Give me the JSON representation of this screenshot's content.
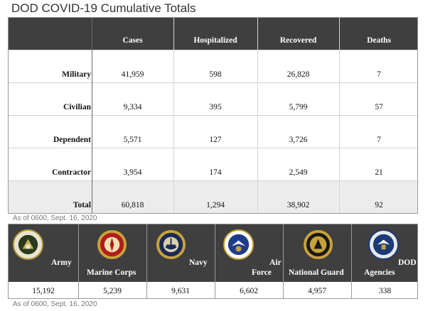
{
  "title": "DOD COVID-19 Cumulative Totals",
  "note": "As of 0600, Sept. 16, 2020",
  "chart_data": [
    {
      "type": "table",
      "columns": [
        "Cases",
        "Hospitalized",
        "Recovered",
        "Deaths"
      ],
      "rows": [
        {
          "label": "Military",
          "values": [
            "41,959",
            "598",
            "26,828",
            "7"
          ]
        },
        {
          "label": "Civilian",
          "values": [
            "9,334",
            "395",
            "5,799",
            "57"
          ]
        },
        {
          "label": "Dependent",
          "values": [
            "5,571",
            "127",
            "3,726",
            "7"
          ]
        },
        {
          "label": "Contractor",
          "values": [
            "3,954",
            "174",
            "2,549",
            "21"
          ]
        },
        {
          "label": "Total",
          "values": [
            "60,818",
            "1,294",
            "38,902",
            "92"
          ]
        }
      ]
    },
    {
      "type": "table",
      "branches": [
        {
          "label": "Army",
          "value": "15,192",
          "icon": "army-seal-icon",
          "color": "#2b3a1e"
        },
        {
          "label": "Marine Corps",
          "value": "5,239",
          "icon": "marine-corps-seal-icon",
          "color": "#b01c1c"
        },
        {
          "label": "Navy",
          "value": "9,631",
          "icon": "navy-seal-icon",
          "color": "#1c2a55"
        },
        {
          "label": "Air Force",
          "value": "6,602",
          "icon": "air-force-seal-icon",
          "color": "#1f3c8a"
        },
        {
          "label": "National Guard",
          "value": "4,957",
          "icon": "national-guard-seal-icon",
          "color": "#9a5a14"
        },
        {
          "label": "DOD Agencies",
          "value": "338",
          "icon": "dod-agencies-seal-icon",
          "color": "#1a3b78"
        }
      ]
    }
  ]
}
